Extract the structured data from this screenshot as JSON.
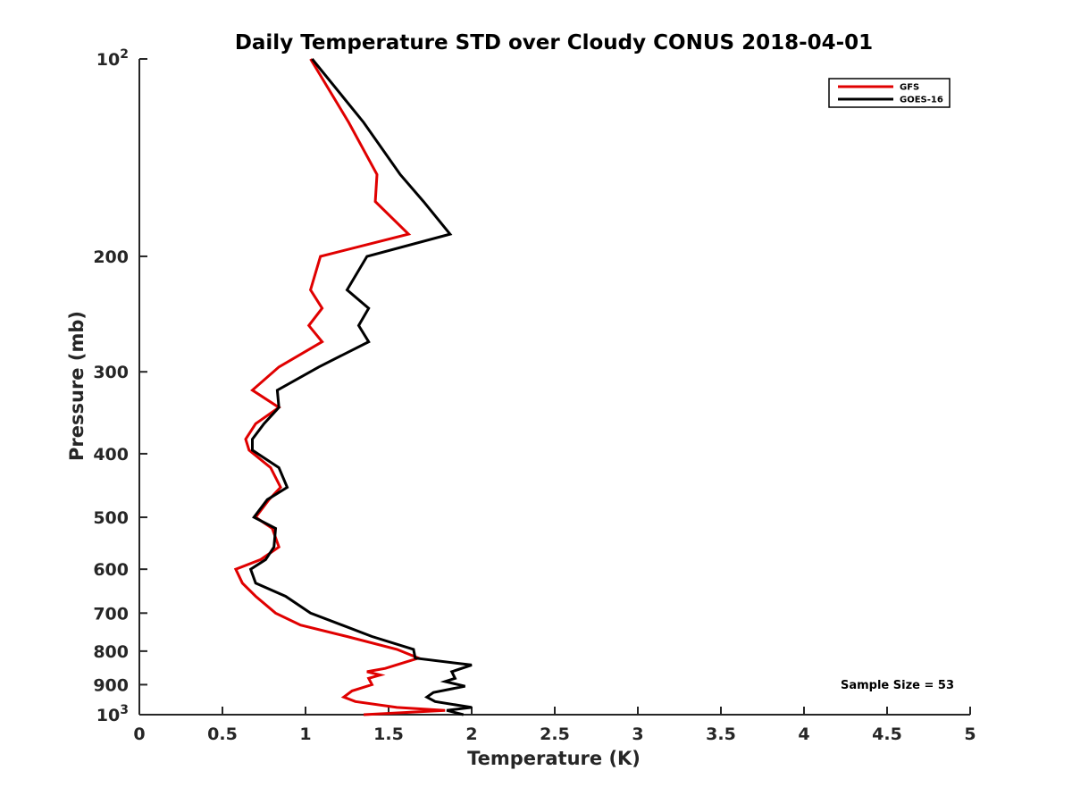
{
  "chart_data": {
    "type": "line",
    "title": "Daily Temperature STD over Cloudy CONUS 2018-04-01",
    "xlabel": "Temperature (K)",
    "ylabel": "Pressure (mb)",
    "xlim": [
      0,
      5
    ],
    "ylim": [
      100,
      1000
    ],
    "y_scale": "log",
    "y_reversed": true,
    "grid": false,
    "legend_position": "top-right",
    "x_ticks": [
      0,
      0.5,
      1,
      1.5,
      2,
      2.5,
      3,
      3.5,
      4,
      4.5,
      5
    ],
    "x_tick_labels": [
      "0",
      "0.5",
      "1",
      "1.5",
      "2",
      "2.5",
      "3",
      "3.5",
      "4",
      "4.5",
      "5"
    ],
    "y_ticks": [
      100,
      200,
      300,
      400,
      500,
      600,
      700,
      800,
      900,
      1000
    ],
    "y_tick_labels": [
      {
        "base": "10",
        "exp": "2"
      },
      {
        "base": "200",
        "exp": ""
      },
      {
        "base": "300",
        "exp": ""
      },
      {
        "base": "400",
        "exp": ""
      },
      {
        "base": "500",
        "exp": ""
      },
      {
        "base": "600",
        "exp": ""
      },
      {
        "base": "700",
        "exp": ""
      },
      {
        "base": "800",
        "exp": ""
      },
      {
        "base": "900",
        "exp": ""
      },
      {
        "base": "10",
        "exp": "3"
      }
    ],
    "annotation": "Sample Size = 53",
    "series": [
      {
        "name": "GFS",
        "color": "#e00000",
        "points": [
          [
            1.03,
            100
          ],
          [
            1.26,
            125
          ],
          [
            1.43,
            150
          ],
          [
            1.42,
            165
          ],
          [
            1.62,
            185
          ],
          [
            1.09,
            200
          ],
          [
            1.03,
            225
          ],
          [
            1.1,
            240
          ],
          [
            1.02,
            255
          ],
          [
            1.1,
            270
          ],
          [
            0.84,
            295
          ],
          [
            0.68,
            320
          ],
          [
            0.84,
            340
          ],
          [
            0.7,
            360
          ],
          [
            0.64,
            380
          ],
          [
            0.66,
            395
          ],
          [
            0.79,
            420
          ],
          [
            0.85,
            450
          ],
          [
            0.78,
            470
          ],
          [
            0.7,
            500
          ],
          [
            0.8,
            520
          ],
          [
            0.84,
            555
          ],
          [
            0.73,
            580
          ],
          [
            0.58,
            600
          ],
          [
            0.62,
            630
          ],
          [
            0.7,
            660
          ],
          [
            0.82,
            700
          ],
          [
            0.97,
            730
          ],
          [
            1.25,
            760
          ],
          [
            1.55,
            795
          ],
          [
            1.68,
            820
          ],
          [
            1.48,
            850
          ],
          [
            1.37,
            860
          ],
          [
            1.45,
            870
          ],
          [
            1.38,
            880
          ],
          [
            1.4,
            900
          ],
          [
            1.28,
            920
          ],
          [
            1.23,
            940
          ],
          [
            1.3,
            955
          ],
          [
            1.55,
            975
          ],
          [
            1.84,
            985
          ],
          [
            1.35,
            1000
          ]
        ]
      },
      {
        "name": "GOES-16",
        "color": "#000000",
        "points": [
          [
            1.04,
            100
          ],
          [
            1.35,
            125
          ],
          [
            1.57,
            150
          ],
          [
            1.71,
            165
          ],
          [
            1.87,
            185
          ],
          [
            1.37,
            200
          ],
          [
            1.25,
            225
          ],
          [
            1.38,
            240
          ],
          [
            1.32,
            255
          ],
          [
            1.38,
            270
          ],
          [
            1.08,
            295
          ],
          [
            0.83,
            320
          ],
          [
            0.84,
            340
          ],
          [
            0.75,
            360
          ],
          [
            0.68,
            380
          ],
          [
            0.68,
            395
          ],
          [
            0.84,
            420
          ],
          [
            0.89,
            450
          ],
          [
            0.77,
            470
          ],
          [
            0.69,
            500
          ],
          [
            0.82,
            520
          ],
          [
            0.81,
            555
          ],
          [
            0.76,
            580
          ],
          [
            0.67,
            600
          ],
          [
            0.7,
            630
          ],
          [
            0.88,
            660
          ],
          [
            1.03,
            700
          ],
          [
            1.22,
            730
          ],
          [
            1.4,
            760
          ],
          [
            1.65,
            795
          ],
          [
            1.66,
            820
          ],
          [
            2.0,
            840
          ],
          [
            1.88,
            860
          ],
          [
            1.9,
            880
          ],
          [
            1.84,
            890
          ],
          [
            1.96,
            905
          ],
          [
            1.77,
            925
          ],
          [
            1.73,
            940
          ],
          [
            1.78,
            955
          ],
          [
            2.0,
            975
          ],
          [
            1.85,
            985
          ],
          [
            1.95,
            1000
          ]
        ]
      }
    ]
  }
}
